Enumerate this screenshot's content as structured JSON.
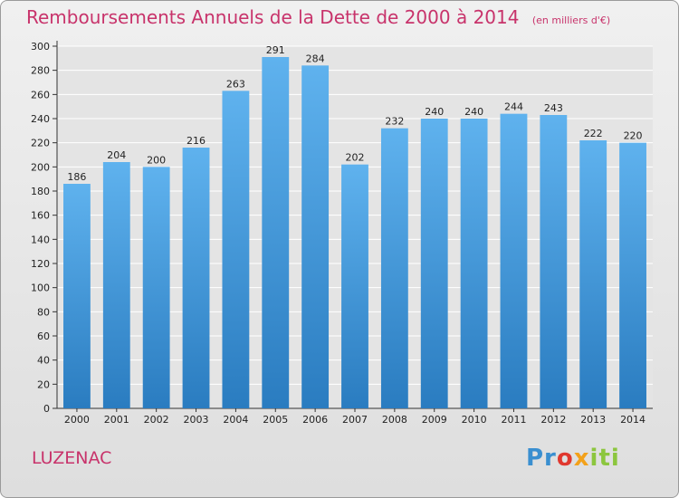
{
  "header": {
    "title": "Remboursements Annuels de la Dette de 2000 à 2014",
    "subtitle": "(en milliers d'€)"
  },
  "footer": {
    "city": "LUZENAC",
    "logo_parts": [
      "Pr",
      "o",
      "x",
      "iti"
    ]
  },
  "colors": {
    "title": "#c8336b",
    "bar_top": "#5fb2ee",
    "bar_bottom": "#2a7cc0",
    "grid": "#ffffff"
  },
  "chart_data": {
    "type": "bar",
    "title": "Remboursements Annuels de la Dette de 2000 à 2014",
    "xlabel": "",
    "ylabel": "",
    "categories": [
      "2000",
      "2001",
      "2002",
      "2003",
      "2004",
      "2005",
      "2006",
      "2007",
      "2008",
      "2009",
      "2010",
      "2011",
      "2012",
      "2013",
      "2014"
    ],
    "values": [
      186,
      204,
      200,
      216,
      263,
      291,
      284,
      202,
      232,
      240,
      240,
      244,
      243,
      222,
      220
    ],
    "ylim": [
      0,
      300
    ],
    "yticks": [
      0,
      20,
      40,
      60,
      80,
      100,
      120,
      140,
      160,
      180,
      200,
      220,
      240,
      260,
      280,
      300
    ],
    "grid": true,
    "legend": "none"
  }
}
